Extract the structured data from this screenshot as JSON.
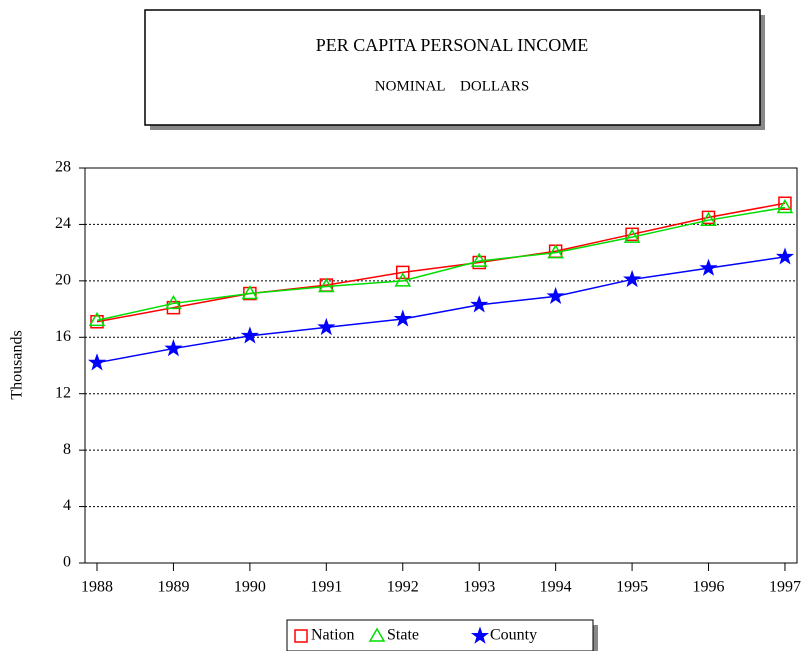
{
  "chart_data": {
    "type": "line",
    "title": "PER CAPITA PERSONAL INCOME",
    "subtitle": "NOMINAL    DOLLARS",
    "y_label": "Thousands",
    "categories": [
      "1988",
      "1989",
      "1990",
      "1991",
      "1992",
      "1993",
      "1994",
      "1995",
      "1996",
      "1997"
    ],
    "series": [
      {
        "name": "Nation",
        "color": "#ff0000",
        "marker": "square",
        "values": [
          17.1,
          18.1,
          19.1,
          19.7,
          20.6,
          21.3,
          22.1,
          23.3,
          24.5,
          25.5
        ]
      },
      {
        "name": "State",
        "color": "#00dd00",
        "marker": "triangle",
        "values": [
          17.2,
          18.4,
          19.1,
          19.6,
          20.0,
          21.4,
          22.0,
          23.1,
          24.3,
          25.2
        ]
      },
      {
        "name": "County",
        "color": "#0000ff",
        "marker": "star",
        "values": [
          14.2,
          15.2,
          16.1,
          16.7,
          17.3,
          18.3,
          18.9,
          20.1,
          20.9,
          21.7
        ]
      }
    ],
    "ylim": [
      0,
      28
    ],
    "yticks": [
      0,
      4,
      8,
      12,
      16,
      20,
      24,
      28
    ],
    "grid": true
  }
}
